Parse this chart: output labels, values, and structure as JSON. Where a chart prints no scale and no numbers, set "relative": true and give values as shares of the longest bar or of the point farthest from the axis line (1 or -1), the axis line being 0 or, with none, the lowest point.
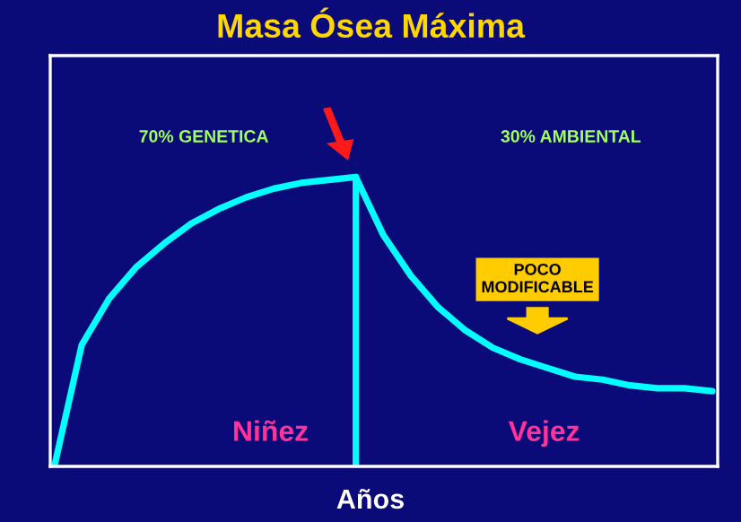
{
  "chart_data": {
    "type": "line",
    "title": "Masa Ósea Máxima",
    "xlabel": "Años",
    "relative": true,
    "categories": [
      null,
      null,
      null,
      null,
      null,
      null,
      null,
      null,
      null,
      null,
      null,
      null,
      null,
      null,
      null,
      null,
      null,
      null,
      null,
      null,
      null,
      null,
      null,
      null,
      null
    ],
    "series": [
      {
        "color": "#00ffff",
        "values": [
          0,
          0.42,
          0.58,
          0.69,
          0.77,
          0.84,
          0.89,
          0.93,
          0.96,
          0.98,
          0.99,
          1,
          null,
          null,
          null,
          null,
          null,
          null,
          null,
          null,
          null,
          null,
          null,
          null,
          null
        ]
      },
      {
        "color": "#00ffff",
        "values": [
          null,
          null,
          null,
          null,
          null,
          null,
          null,
          null,
          null,
          null,
          null,
          1,
          0.8,
          0.66,
          0.55,
          0.47,
          0.41,
          0.37,
          0.34,
          0.31,
          0.3,
          0.28,
          0.27,
          0.27,
          0.26
        ]
      }
    ],
    "annotations": [
      "70% GENETICA",
      "30% AMBIENTAL",
      "POCO\nMODIFICABLE",
      "Niñez",
      "Vejez"
    ],
    "grid": false,
    "legend": false,
    "marker": "none",
    "line_style": "solid"
  }
}
